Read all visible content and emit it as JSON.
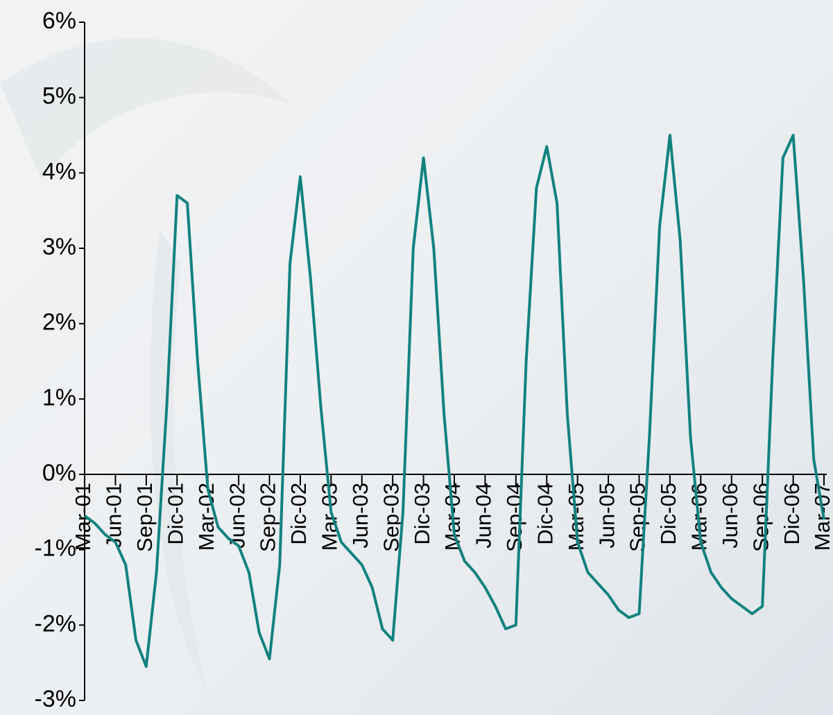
{
  "chart_data": {
    "type": "line",
    "categories": [
      "Mar-01",
      null,
      null,
      "Jun-01",
      null,
      null,
      "Sep-01",
      null,
      null,
      "Dic-01",
      null,
      null,
      "Mar-02",
      null,
      null,
      "Jun-02",
      null,
      null,
      "Sep-02",
      null,
      null,
      "Dic-02",
      null,
      null,
      "Mar-03",
      null,
      null,
      "Jun-03",
      null,
      null,
      "Sep-03",
      null,
      null,
      "Dic-03",
      null,
      null,
      "Mar-04",
      null,
      null,
      "Jun-04",
      null,
      null,
      "Sep-04",
      null,
      null,
      "Dic-04",
      null,
      null,
      "Mar-05",
      null,
      null,
      "Jun-05",
      null,
      null,
      "Sep-05",
      null,
      null,
      "Dic-05",
      null,
      null,
      "Mar-06",
      null,
      null,
      "Jun-06",
      null,
      null,
      "Sep-06",
      null,
      null,
      "Dic-06",
      null,
      null,
      "Mar-07"
    ],
    "series": [
      {
        "color": "#12827f",
        "values": [
          -0.55,
          -0.65,
          -0.8,
          -0.9,
          -1.2,
          -2.2,
          -2.55,
          -1.3,
          0.9,
          3.7,
          3.6,
          1.5,
          -0.2,
          -0.7,
          -0.85,
          -0.95,
          -1.3,
          -2.1,
          -2.45,
          -1.2,
          2.8,
          3.95,
          2.6,
          0.9,
          -0.5,
          -0.9,
          -1.05,
          -1.2,
          -1.5,
          -2.05,
          -2.2,
          -0.5,
          3.0,
          4.2,
          3.0,
          0.8,
          -0.8,
          -1.15,
          -1.3,
          -1.5,
          -1.75,
          -2.05,
          -2.0,
          1.5,
          3.8,
          4.35,
          3.6,
          0.8,
          -0.9,
          -1.3,
          -1.45,
          -1.6,
          -1.8,
          -1.9,
          -1.85,
          0.5,
          3.3,
          4.5,
          3.1,
          0.5,
          -0.9,
          -1.3,
          -1.5,
          -1.65,
          -1.75,
          -1.85,
          -1.75,
          1.5,
          4.2,
          4.5,
          2.6,
          0.2,
          -0.6
        ]
      }
    ],
    "ylim": [
      -3,
      6
    ],
    "yticks": [
      {
        "value": -3,
        "label": "-3%"
      },
      {
        "value": -2,
        "label": "-2%"
      },
      {
        "value": -1,
        "label": "-1%"
      },
      {
        "value": 0,
        "label": "0%"
      },
      {
        "value": 1,
        "label": "1%"
      },
      {
        "value": 2,
        "label": "2%"
      },
      {
        "value": 3,
        "label": "3%"
      },
      {
        "value": 4,
        "label": "4%"
      },
      {
        "value": 5,
        "label": "5%"
      },
      {
        "value": 6,
        "label": "6%"
      }
    ],
    "grid": false
  }
}
